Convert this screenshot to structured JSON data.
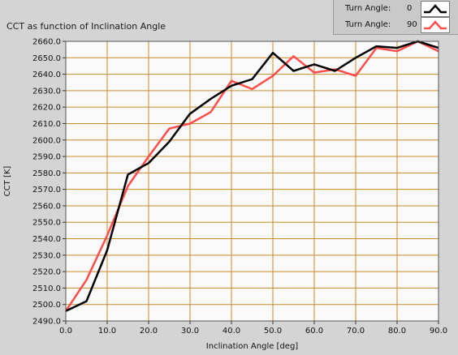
{
  "chart_data": {
    "type": "line",
    "title": "CCT as function of Inclination Angle",
    "xlabel": "Inclination Angle [deg]",
    "ylabel": "CCT [K]",
    "xlim": [
      0,
      90
    ],
    "ylim": [
      2490,
      2660
    ],
    "x_ticks": [
      0,
      10,
      20,
      30,
      40,
      50,
      60,
      70,
      80,
      90
    ],
    "x_tick_labels": [
      "0.0",
      "10.0",
      "20.0",
      "30.0",
      "40.0",
      "50.0",
      "60.0",
      "70.0",
      "80.0",
      "90.0"
    ],
    "y_ticks": [
      2490,
      2500,
      2510,
      2520,
      2530,
      2540,
      2550,
      2560,
      2570,
      2580,
      2590,
      2600,
      2610,
      2620,
      2630,
      2640,
      2650,
      2660
    ],
    "y_tick_labels": [
      "2490.0",
      "2500.0",
      "2510.0",
      "2520.0",
      "2530.0",
      "2540.0",
      "2550.0",
      "2560.0",
      "2570.0",
      "2580.0",
      "2590.0",
      "2600.0",
      "2610.0",
      "2620.0",
      "2630.0",
      "2640.0",
      "2650.0",
      "2660.0"
    ],
    "grid": true,
    "legend_position": "top-right",
    "x": [
      0,
      5,
      10,
      15,
      20,
      25,
      30,
      35,
      40,
      45,
      50,
      55,
      60,
      65,
      70,
      75,
      80,
      85,
      90
    ],
    "series": [
      {
        "name": "Turn Angle:",
        "legend_value": "0",
        "color": "#000000",
        "values": [
          2496,
          2502,
          2533,
          2579,
          2586,
          2599,
          2616,
          2625,
          2633,
          2637,
          2653,
          2642,
          2646,
          2642,
          2650,
          2657,
          2656,
          2660,
          2656
        ]
      },
      {
        "name": "Turn Angle:",
        "legend_value": "90",
        "color": "#ff4d4d",
        "values": [
          2496,
          2515,
          2542,
          2572,
          2590,
          2607,
          2610,
          2617,
          2636,
          2631,
          2639,
          2651,
          2641,
          2643,
          2639,
          2656,
          2654,
          2660,
          2654
        ]
      }
    ]
  },
  "colors": {
    "plot_background": "#fafafa",
    "grid": "#c98a2a",
    "panel": "#d4d4d4"
  }
}
